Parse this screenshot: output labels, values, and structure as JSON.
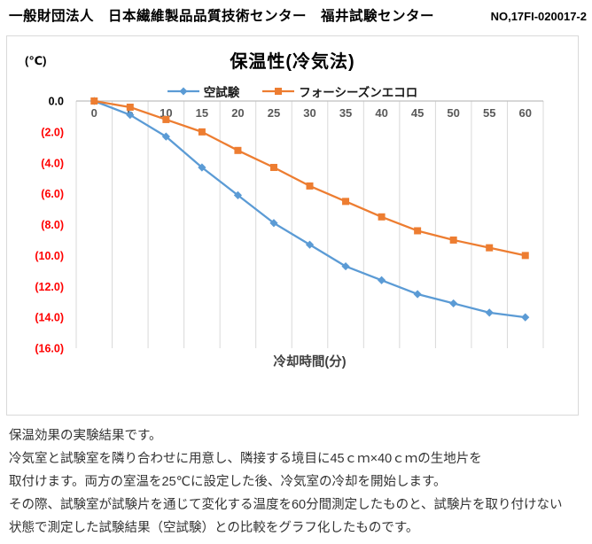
{
  "header": {
    "org_title": "一般財団法人　日本繊維製品品質技術センター　福井試験センター",
    "report_no": "NO,17FI-020017-2"
  },
  "chart_data": {
    "type": "line",
    "title": "保温性(冷気法)",
    "y_unit_label": "(℃)",
    "xlabel": "冷却時間(分)",
    "ylabel": "",
    "x": [
      0,
      5,
      10,
      15,
      20,
      25,
      30,
      35,
      40,
      45,
      50,
      55,
      60
    ],
    "series": [
      {
        "name": "空試験",
        "color": "#5b9bd5",
        "marker": "diamond",
        "values": [
          0.0,
          -0.9,
          -2.3,
          -4.3,
          -6.1,
          -7.9,
          -9.3,
          -10.7,
          -11.6,
          -12.5,
          -13.1,
          -13.7,
          -14.0
        ]
      },
      {
        "name": "フォーシーズンエコロ",
        "color": "#ed7d31",
        "marker": "square",
        "values": [
          0.0,
          -0.4,
          -1.2,
          -2.0,
          -3.2,
          -4.3,
          -5.5,
          -6.5,
          -7.5,
          -8.4,
          -9.0,
          -9.5,
          -10.0
        ]
      }
    ],
    "ylim": [
      -16,
      0
    ],
    "y_tick_step": 2,
    "y_tick_labels": [
      "0.0",
      "(2.0)",
      "(4.0)",
      "(6.0)",
      "(8.0)",
      "(10.0)",
      "(12.0)",
      "(14.0)",
      "(16.0)"
    ],
    "y_tick_zero_color": "#000000",
    "y_tick_negative_color": "#ff0000",
    "x_tick_color": "#595959",
    "gridline_color": "#d9d9d9",
    "axis_line_color": "#bfbfbf",
    "grid": "vertical-only",
    "legend_position": "top"
  },
  "description": {
    "lines": [
      "保温効果の実験結果です。",
      "冷気室と試験室を隣り合わせに用意し、隣接する境目に45ｃｍ×40ｃｍの生地片を",
      "取付けます。両方の室温を25℃に設定した後、冷気室の冷却を開始します。",
      "その際、試験室が試験片を通じて変化する温度を60分間測定したものと、試験片を取り付けない",
      "状態で測定した試験結果（空試験）との比較をグラフ化したものです。"
    ]
  }
}
